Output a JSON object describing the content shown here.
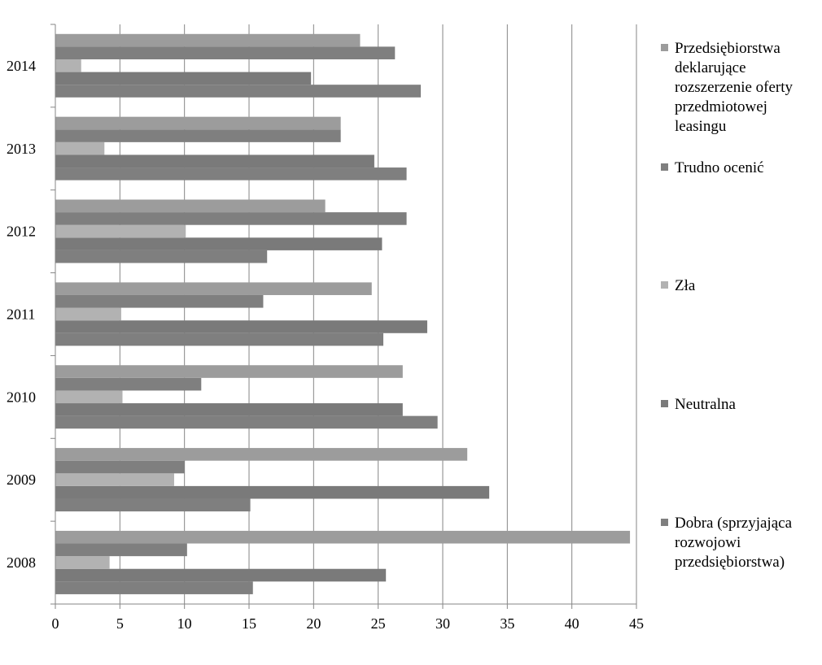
{
  "chart_data": {
    "type": "bar",
    "orientation": "horizontal",
    "categories": [
      "2008",
      "2009",
      "2010",
      "2011",
      "2012",
      "2013",
      "2014"
    ],
    "xlim": [
      0,
      45
    ],
    "xticks": [
      0,
      5,
      10,
      15,
      20,
      25,
      30,
      35,
      40,
      45
    ],
    "grid": "vertical",
    "legend_position": "right",
    "series": [
      {
        "name": "Dobra (sprzyjająca rozwojowi przedsiębiorstwa)",
        "color": "#7f7f7f",
        "values": [
          15.3,
          15.1,
          29.6,
          25.4,
          16.4,
          27.2,
          28.3
        ]
      },
      {
        "name": "Neutralna",
        "color": "#7a7a7a",
        "values": [
          25.6,
          33.6,
          26.9,
          28.8,
          25.3,
          24.7,
          19.8
        ]
      },
      {
        "name": "Zła",
        "color": "#b2b2b2",
        "values": [
          4.2,
          9.2,
          5.2,
          5.1,
          10.1,
          3.8,
          2.0
        ]
      },
      {
        "name": "Trudno ocenić",
        "color": "#7f7f7f",
        "values": [
          10.2,
          10.0,
          11.3,
          16.1,
          27.2,
          22.1,
          26.3
        ]
      },
      {
        "name": "Przedsiębiorstwa deklarujące rozszerzenie oferty przedmiotowej leasingu",
        "color": "#9c9c9c",
        "values": [
          44.5,
          31.9,
          26.9,
          24.5,
          20.9,
          22.1,
          23.6
        ]
      }
    ]
  }
}
